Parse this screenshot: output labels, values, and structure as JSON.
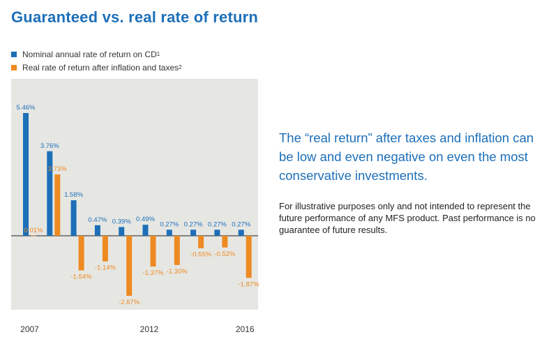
{
  "title": "Guaranteed vs. real rate of return",
  "legend": [
    {
      "label": "Nominal annual rate of return on CD",
      "sup": "1",
      "color": "#1d6fb8"
    },
    {
      "label": "Real rate of return after inflation and taxes",
      "sup": "2",
      "color": "#ee8a22"
    }
  ],
  "headline": "The “real return” after taxes and inflation can be low and even negative on even the most conservative investments.",
  "disclaimer": "For illustrative purposes only and not intended to represent the future performance of any MFS product. Past performance is no guarantee of future results.",
  "chart_data": {
    "type": "bar",
    "x": [
      2007,
      2008,
      2009,
      2010,
      2011,
      2012,
      2013,
      2014,
      2015,
      2016
    ],
    "x_tick_labels": [
      "2007",
      "2012",
      "2016"
    ],
    "x_tick_values": [
      2007,
      2012,
      2016
    ],
    "series": [
      {
        "name": "Nominal annual rate of return on CD",
        "color": "#1d6fb8",
        "values": [
          5.46,
          3.76,
          1.58,
          0.47,
          0.39,
          0.49,
          0.27,
          0.27,
          0.27,
          0.27
        ],
        "labels": [
          "5.46%",
          "3.76%",
          "1.58%",
          "0.47%",
          "0.39%",
          "0.49%",
          "0.27%",
          "0.27%",
          "0.27%",
          "0.27%"
        ]
      },
      {
        "name": "Real rate of return after inflation and taxes",
        "color": "#ee8a22",
        "values": [
          0.01,
          2.73,
          -1.54,
          -1.14,
          -2.67,
          -1.37,
          -1.3,
          -0.55,
          -0.52,
          -1.87
        ],
        "labels": [
          "0.01%",
          "2.73%",
          "-1.54%",
          "-1.14%",
          "-2.67%",
          "-1.37%",
          "-1.30%",
          "-0.55%",
          "-0.52%",
          "-1.87%"
        ]
      }
    ],
    "ylim": [
      -3.0,
      6.0
    ],
    "plot_background": "#e6e7e3",
    "grid": false
  }
}
